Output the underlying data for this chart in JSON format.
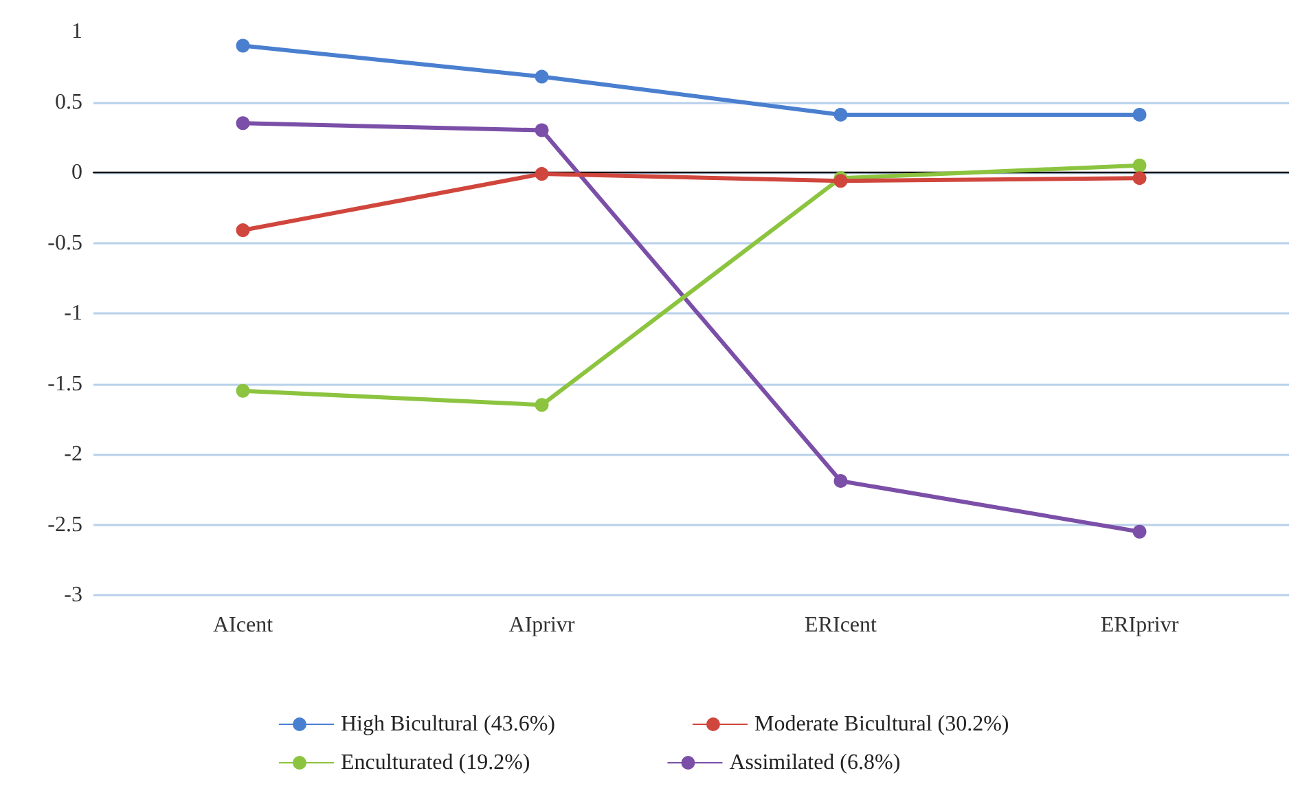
{
  "chart_data": {
    "type": "line",
    "categories": [
      "AIcent",
      "AIprivr",
      "ERIcent",
      "ERIprivr"
    ],
    "series": [
      {
        "name": "High Bicultural (43.6%)",
        "color": "#4a7fd0",
        "values": [
          0.9,
          0.68,
          0.41,
          0.41
        ]
      },
      {
        "name": "Moderate Bicultural (30.2%)",
        "color": "#d0463d",
        "values": [
          -0.41,
          -0.01,
          -0.06,
          -0.04
        ]
      },
      {
        "name": "Enculturated (19.2%)",
        "color": "#8cc43f",
        "values": [
          -1.55,
          -1.65,
          -0.04,
          0.05
        ]
      },
      {
        "name": "Assimilated (6.8%)",
        "color": "#7b4fa8",
        "values": [
          0.35,
          0.3,
          -2.19,
          -2.55
        ]
      }
    ],
    "ylim": [
      -3,
      1
    ],
    "yticks": [
      -3,
      -2.5,
      -2,
      -1.5,
      -1,
      -0.5,
      0,
      0.5,
      1
    ],
    "grid": "y",
    "legend": "bottom",
    "marker": "circle",
    "line_style": "solid"
  }
}
